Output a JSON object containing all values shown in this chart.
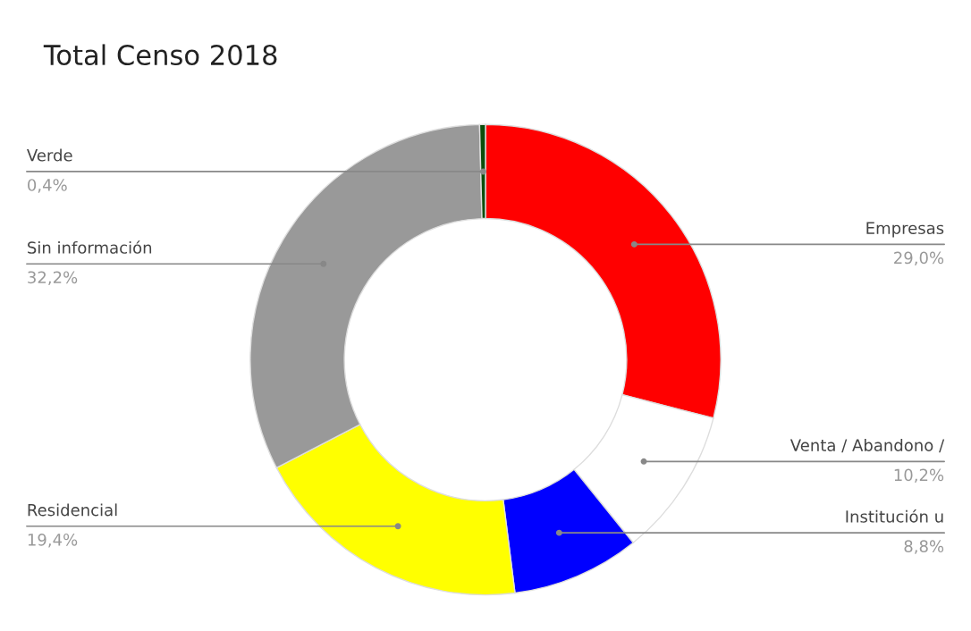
{
  "chart_data": {
    "type": "donut",
    "title": "Total Censo 2018",
    "categories": [
      "Empresas",
      "Venta / Abandono /",
      "Institución u",
      "Residencial",
      "Sin información",
      "Verde"
    ],
    "values": [
      29.0,
      10.2,
      8.8,
      19.4,
      32.2,
      0.4
    ],
    "colors": [
      "#ff0000",
      "#ffffff",
      "#0000ff",
      "#ffff00",
      "#999999",
      "#0b4d0b"
    ],
    "value_labels": [
      "29,0%",
      "10,2%",
      "8,8%",
      "19,4%",
      "32,2%",
      "0,4%"
    ]
  }
}
